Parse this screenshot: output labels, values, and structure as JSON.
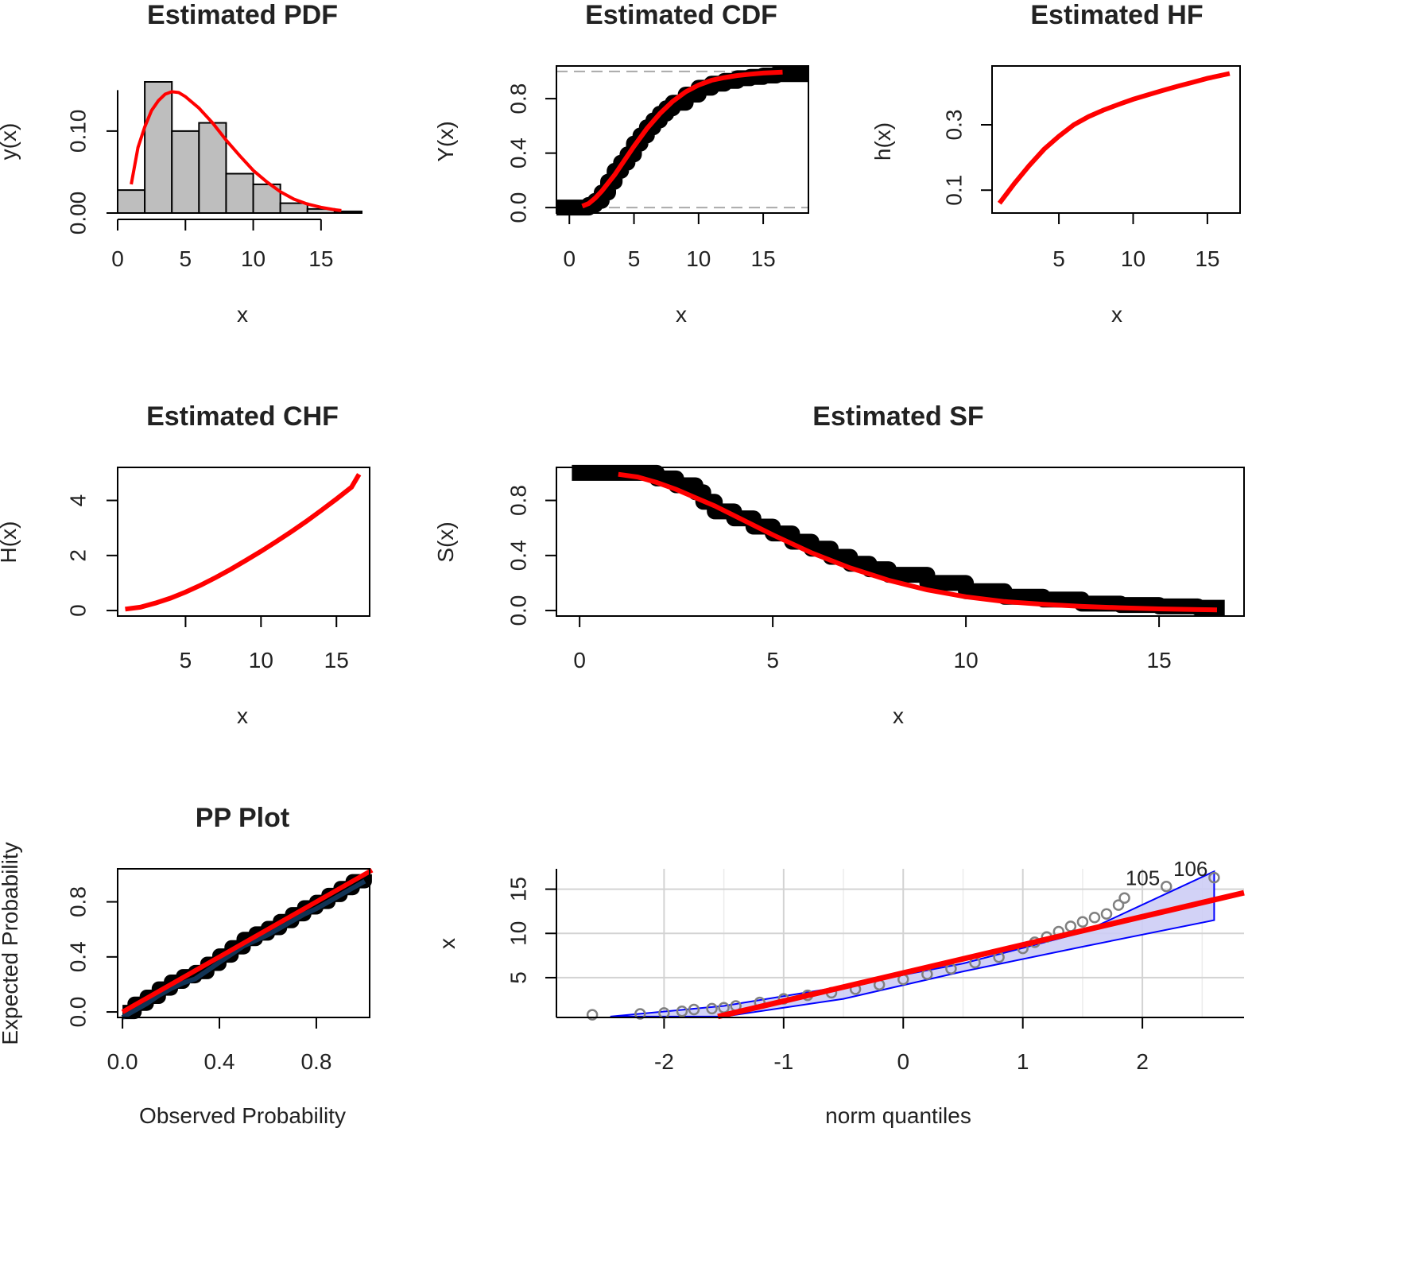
{
  "colors": {
    "red": "#ff0000",
    "black": "#000000",
    "hist_fill": "#bebebe",
    "band_stroke": "#0000ff",
    "band_fill": "#cdcdf5",
    "grid": "#d3d3d3",
    "points": "#808080"
  },
  "chart_data": [
    {
      "type": "bar",
      "id": "pdf",
      "title": "Estimated PDF",
      "xlabel": "x",
      "ylabel": "y(x)",
      "xlim": [
        0,
        18
      ],
      "ylim": [
        0,
        0.16
      ],
      "xticks": [
        "0",
        "5",
        "10",
        "15"
      ],
      "yticks": [
        "0.00",
        "0.10"
      ],
      "histogram": {
        "bin_edges": [
          0,
          2,
          4,
          6,
          8,
          10,
          12,
          14,
          16,
          18
        ],
        "densities": [
          0.028,
          0.16,
          0.1,
          0.11,
          0.048,
          0.035,
          0.012,
          0.005,
          0.002
        ]
      },
      "density_curve": {
        "x": [
          1.0,
          1.5,
          2,
          2.5,
          3,
          3.5,
          4,
          4.5,
          5,
          6,
          7,
          8,
          9,
          10,
          11,
          12,
          13,
          14,
          15,
          16,
          16.5
        ],
        "y": [
          0.035,
          0.08,
          0.105,
          0.125,
          0.137,
          0.145,
          0.148,
          0.147,
          0.142,
          0.128,
          0.11,
          0.089,
          0.07,
          0.052,
          0.038,
          0.026,
          0.017,
          0.011,
          0.007,
          0.004,
          0.003
        ]
      }
    },
    {
      "type": "line",
      "id": "cdf",
      "title": "Estimated CDF",
      "xlabel": "x",
      "ylabel": "Y(x)",
      "xlim": [
        -1,
        18.5
      ],
      "ylim": [
        -0.04,
        1.04
      ],
      "xticks": [
        "0",
        "5",
        "10",
        "15"
      ],
      "yticks": [
        "0.0",
        "0.4",
        "0.8"
      ],
      "reference_lines": [
        0,
        1
      ],
      "empirical": {
        "x": [
          -1,
          0.8,
          1.5,
          2,
          2.5,
          3,
          3.5,
          4,
          4.5,
          5,
          5.5,
          6,
          6.5,
          7,
          7.5,
          8,
          9,
          10,
          11,
          12,
          13,
          14,
          15,
          16,
          18.5
        ],
        "y": [
          0,
          0,
          0.02,
          0.05,
          0.11,
          0.19,
          0.27,
          0.33,
          0.39,
          0.47,
          0.53,
          0.59,
          0.64,
          0.69,
          0.73,
          0.77,
          0.83,
          0.88,
          0.91,
          0.93,
          0.95,
          0.96,
          0.97,
          0.98,
          0.98
        ]
      },
      "fitted": {
        "x": [
          1.0,
          1.5,
          2,
          2.5,
          3,
          3.5,
          4,
          5,
          6,
          7,
          8,
          9,
          10,
          11,
          12,
          13,
          14,
          15,
          16,
          16.5
        ],
        "y": [
          0.01,
          0.03,
          0.07,
          0.12,
          0.18,
          0.24,
          0.31,
          0.45,
          0.58,
          0.69,
          0.78,
          0.85,
          0.9,
          0.935,
          0.955,
          0.97,
          0.98,
          0.988,
          0.993,
          0.995
        ]
      }
    },
    {
      "type": "line",
      "id": "hf",
      "title": "Estimated HF",
      "xlabel": "x",
      "ylabel": "h(x)",
      "xlim": [
        0.5,
        17.2
      ],
      "ylim": [
        0.03,
        0.48
      ],
      "xticks": [
        "5",
        "10",
        "15"
      ],
      "yticks": [
        "0.1",
        "0.3"
      ],
      "series": [
        {
          "name": "hazard",
          "x": [
            1.0,
            2,
            3,
            4,
            5,
            6,
            7,
            8,
            9,
            10,
            11,
            12,
            13,
            14,
            15,
            16,
            16.5
          ],
          "y": [
            0.06,
            0.12,
            0.175,
            0.225,
            0.265,
            0.3,
            0.325,
            0.345,
            0.362,
            0.378,
            0.392,
            0.405,
            0.418,
            0.43,
            0.442,
            0.452,
            0.457
          ]
        }
      ]
    },
    {
      "type": "line",
      "id": "chf",
      "title": "Estimated CHF",
      "xlabel": "x",
      "ylabel": "H(x)",
      "xlim": [
        0.5,
        17.2
      ],
      "ylim": [
        -0.2,
        5.2
      ],
      "xticks": [
        "5",
        "10",
        "15"
      ],
      "yticks": [
        "0",
        "2",
        "4"
      ],
      "series": [
        {
          "name": "cumulative hazard",
          "x": [
            1.0,
            2,
            3,
            4,
            5,
            6,
            7,
            8,
            9,
            10,
            11,
            12,
            13,
            14,
            15,
            16,
            16.5
          ],
          "y": [
            0.05,
            0.12,
            0.27,
            0.45,
            0.67,
            0.92,
            1.2,
            1.5,
            1.82,
            2.15,
            2.5,
            2.86,
            3.24,
            3.64,
            4.05,
            4.48,
            4.95
          ]
        }
      ]
    },
    {
      "type": "line",
      "id": "sf",
      "title": "Estimated SF",
      "xlabel": "x",
      "ylabel": "S(x)",
      "xlim": [
        -0.6,
        17.2
      ],
      "ylim": [
        -0.04,
        1.04
      ],
      "xticks": [
        "0",
        "5",
        "10",
        "15"
      ],
      "yticks": [
        "0.0",
        "0.4",
        "0.8"
      ],
      "empirical": {
        "x": [
          -0.2,
          1.0,
          2,
          2.5,
          3,
          3.2,
          3.5,
          4,
          4.5,
          5,
          5.5,
          6,
          6.5,
          7,
          7.5,
          8,
          9,
          10,
          11,
          12,
          13,
          14,
          15,
          16,
          16.7
        ],
        "y": [
          1.0,
          1.0,
          0.96,
          0.91,
          0.86,
          0.79,
          0.72,
          0.67,
          0.61,
          0.56,
          0.5,
          0.45,
          0.39,
          0.34,
          0.3,
          0.26,
          0.2,
          0.14,
          0.1,
          0.08,
          0.05,
          0.04,
          0.03,
          0.02,
          0.02
        ]
      },
      "fitted": {
        "x": [
          1.0,
          1.5,
          2,
          2.5,
          3,
          3.5,
          4,
          5,
          6,
          7,
          8,
          9,
          10,
          11,
          12,
          13,
          14,
          15,
          16,
          16.5
        ],
        "y": [
          0.99,
          0.97,
          0.93,
          0.88,
          0.82,
          0.76,
          0.69,
          0.55,
          0.42,
          0.31,
          0.22,
          0.15,
          0.1,
          0.065,
          0.045,
          0.03,
          0.02,
          0.012,
          0.007,
          0.005
        ]
      }
    },
    {
      "type": "line",
      "id": "pp",
      "title": "PP Plot",
      "xlabel": "Observed Probability",
      "ylabel": "Expected Probability",
      "xlim": [
        -0.02,
        1.02
      ],
      "ylim": [
        -0.04,
        1.04
      ],
      "xticks": [
        "0.0",
        "0.4",
        "0.8"
      ],
      "yticks": [
        "0.0",
        "0.4",
        "0.8"
      ],
      "points": {
        "x": [
          0.0,
          0.05,
          0.1,
          0.15,
          0.2,
          0.25,
          0.3,
          0.35,
          0.4,
          0.45,
          0.5,
          0.55,
          0.6,
          0.65,
          0.7,
          0.75,
          0.8,
          0.85,
          0.9,
          0.95,
          1.0
        ],
        "y": [
          0.0,
          0.06,
          0.11,
          0.17,
          0.22,
          0.26,
          0.29,
          0.35,
          0.41,
          0.47,
          0.53,
          0.57,
          0.61,
          0.66,
          0.71,
          0.76,
          0.8,
          0.85,
          0.9,
          0.95,
          1.0
        ]
      },
      "reference": {
        "x": [
          0,
          1.03
        ],
        "y": [
          0,
          1.03
        ]
      }
    },
    {
      "type": "scatter",
      "id": "qq",
      "title": "",
      "xlabel": "norm quantiles",
      "ylabel": "x",
      "xlim": [
        -2.9,
        2.85
      ],
      "ylim": [
        0.5,
        17.3
      ],
      "xticks": [
        "-2",
        "-1",
        "0",
        "1",
        "2"
      ],
      "yticks": [
        "5",
        "10",
        "15"
      ],
      "grid": true,
      "points": {
        "x": [
          -2.6,
          -2.2,
          -2.0,
          -1.85,
          -1.75,
          -1.6,
          -1.5,
          -1.4,
          -1.2,
          -1.0,
          -0.8,
          -0.6,
          -0.4,
          -0.2,
          0.0,
          0.2,
          0.4,
          0.6,
          0.8,
          1.0,
          1.1,
          1.2,
          1.3,
          1.4,
          1.5,
          1.6,
          1.7,
          1.8,
          1.85,
          2.2,
          2.6
        ],
        "y": [
          0.8,
          0.9,
          1.0,
          1.2,
          1.4,
          1.5,
          1.6,
          1.8,
          2.2,
          2.6,
          3.0,
          3.3,
          3.7,
          4.2,
          4.8,
          5.4,
          6.0,
          6.7,
          7.3,
          8.3,
          9.0,
          9.6,
          10.2,
          10.8,
          11.3,
          11.8,
          12.2,
          13.2,
          14.0,
          15.3,
          16.3
        ]
      },
      "point_labels": [
        {
          "text": "105",
          "x": 2.2,
          "y": 15.3
        },
        {
          "text": "106",
          "x": 2.6,
          "y": 16.3
        }
      ],
      "reference_line": {
        "x": [
          -1.55,
          2.85
        ],
        "y": [
          0.6,
          14.6
        ]
      },
      "band_upper": {
        "x": [
          -2.45,
          -1.5,
          -0.5,
          0.5,
          1.5,
          2.6
        ],
        "y": [
          0.6,
          1.8,
          4.0,
          6.6,
          10.1,
          17.0
        ]
      },
      "band_lower": {
        "x": [
          -2.45,
          -1.5,
          -0.5,
          0.5,
          1.5,
          2.6
        ],
        "y": [
          0.6,
          0.6,
          2.6,
          5.7,
          8.5,
          11.5
        ]
      }
    }
  ]
}
